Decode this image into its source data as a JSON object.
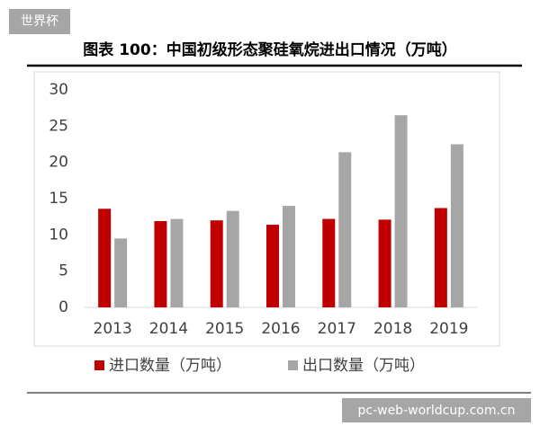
{
  "watermark_top": "世界杯",
  "watermark_bottom": "pc-web-worldcup.com.cn",
  "chart_data": {
    "type": "bar",
    "title": "图表 100：中国初级形态聚硅氧烷进出口情况（万吨）",
    "categories": [
      "2013",
      "2014",
      "2015",
      "2016",
      "2017",
      "2018",
      "2019"
    ],
    "series": [
      {
        "name": "进口数量（万吨）",
        "color": "#c00000",
        "values": [
          13.6,
          11.9,
          12.0,
          11.4,
          12.2,
          12.1,
          13.7
        ]
      },
      {
        "name": "出口数量（万吨）",
        "color": "#a6a6a6",
        "values": [
          9.5,
          12.2,
          13.3,
          14.0,
          21.4,
          26.5,
          22.5
        ]
      }
    ],
    "ylim": [
      0,
      30
    ],
    "yticks": [
      0,
      5,
      10,
      15,
      20,
      25,
      30
    ],
    "grid": false,
    "legend": "bottom"
  }
}
